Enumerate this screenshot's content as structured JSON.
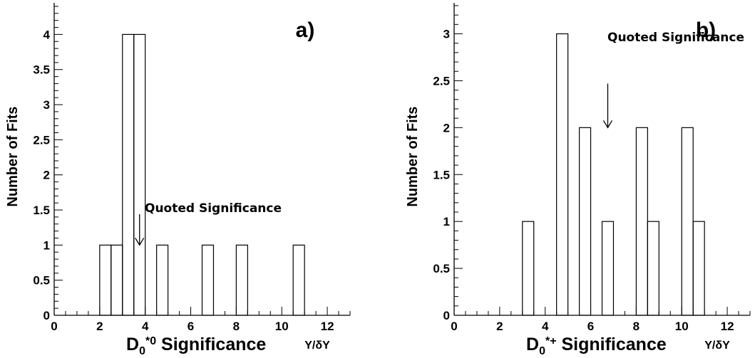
{
  "chart_data": [
    {
      "type": "bar",
      "panel_label": "a)",
      "ylabel": "Number of Fits",
      "xtitle_main": "D",
      "xtitle_sub": "0",
      "xtitle_sup": "*0",
      "xtitle_rest": " Significance",
      "x_unit": "Y/δY",
      "xlim": [
        0,
        13
      ],
      "ylim": [
        0,
        4.45
      ],
      "x_ticks": [
        "0",
        "2",
        "4",
        "6",
        "8",
        "10",
        "12"
      ],
      "y_ticks": [
        "0",
        "0.5",
        "1",
        "1.5",
        "2",
        "2.5",
        "3",
        "3.5",
        "4"
      ],
      "bin_width": 0.5,
      "bins": [
        {
          "x": 2.0,
          "count": 1
        },
        {
          "x": 2.5,
          "count": 1
        },
        {
          "x": 3.0,
          "count": 4
        },
        {
          "x": 3.5,
          "count": 4
        },
        {
          "x": 4.5,
          "count": 1
        },
        {
          "x": 6.5,
          "count": 1
        },
        {
          "x": 8.0,
          "count": 1
        },
        {
          "x": 10.5,
          "count": 1
        }
      ],
      "annotation": {
        "text": "Quoted Significance",
        "x": 3.75,
        "arrow_from_y": 1.5,
        "arrow_to_y": 1.0
      },
      "grid": false
    },
    {
      "type": "bar",
      "panel_label": "b)",
      "ylabel": "Number of Fits",
      "xtitle_main": "D",
      "xtitle_sub": "0",
      "xtitle_sup": "*+",
      "xtitle_rest": " Significance",
      "x_unit": "Y/δY",
      "xlim": [
        0,
        13
      ],
      "ylim": [
        0,
        3.33
      ],
      "x_ticks": [
        "0",
        "2",
        "4",
        "6",
        "8",
        "10",
        "12"
      ],
      "y_ticks": [
        "0",
        "0.5",
        "1",
        "1.5",
        "2",
        "2.5",
        "3"
      ],
      "bin_width": 0.5,
      "bins": [
        {
          "x": 3.0,
          "count": 1
        },
        {
          "x": 4.5,
          "count": 3
        },
        {
          "x": 5.5,
          "count": 2
        },
        {
          "x": 6.5,
          "count": 1
        },
        {
          "x": 8.0,
          "count": 2
        },
        {
          "x": 8.5,
          "count": 1
        },
        {
          "x": 10.0,
          "count": 2
        },
        {
          "x": 10.5,
          "count": 1
        }
      ],
      "annotation": {
        "text": "Quoted Significance",
        "x": 6.75,
        "arrow_from_y": 2.5,
        "arrow_to_y": 2.0
      },
      "grid": false
    }
  ]
}
